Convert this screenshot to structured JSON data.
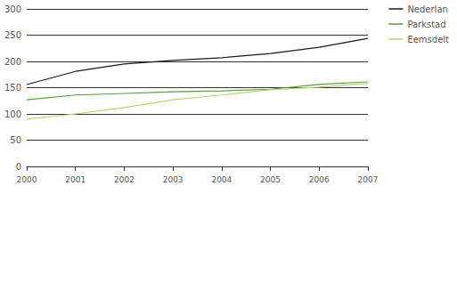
{
  "chart_data": {
    "type": "line",
    "categories": [
      "2000",
      "2001",
      "2002",
      "2003",
      "2004",
      "2005",
      "2006",
      "2007"
    ],
    "series": [
      {
        "name": "Nederlan",
        "color": "#1a1a1a",
        "values": [
          156,
          181,
          195,
          202,
          207,
          215,
          227,
          244
        ]
      },
      {
        "name": "Parkstad",
        "color": "#5a9e3a",
        "values": [
          127,
          136,
          139,
          142,
          144,
          147,
          156,
          161
        ]
      },
      {
        "name": "Eemsdelt",
        "color": "#b5d57a",
        "values": [
          90,
          100,
          112,
          127,
          136,
          146,
          151,
          158
        ]
      }
    ],
    "ylim": [
      0,
      300
    ],
    "yticks": [
      0,
      50,
      100,
      150,
      200,
      250,
      300
    ],
    "grid": true,
    "legend": "upper right"
  }
}
